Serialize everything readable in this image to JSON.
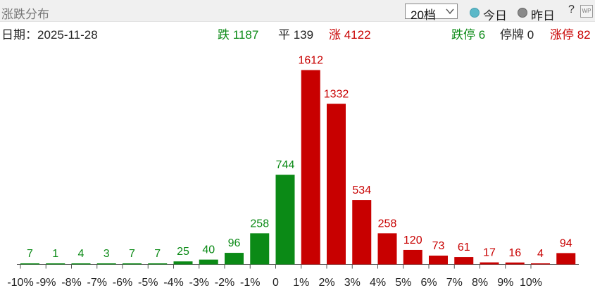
{
  "header": {
    "title": "涨跌分布",
    "tier_select": "20档",
    "radio_today": "今日",
    "radio_yesterday": "昨日",
    "help": "?",
    "logo_text": "WP"
  },
  "info": {
    "date": "日期：2025-11-28",
    "down": "跌 1187",
    "flat": "平 139",
    "up": "涨 4122",
    "limit_down": "跌停 6",
    "suspended": "停牌 0",
    "limit_up": "涨停 82"
  },
  "colors": {
    "up": "#c80000",
    "down": "#0b8a16",
    "axis": "#555555"
  },
  "chart_data": {
    "type": "bar",
    "categories": [
      "-10%",
      "-9%",
      "-8%",
      "-7%",
      "-6%",
      "-5%",
      "-4%",
      "-3%",
      "-2%",
      "-1%",
      "0",
      "1%",
      "2%",
      "3%",
      "4%",
      "5%",
      "6%",
      "7%",
      "8%",
      "9%",
      "10%"
    ],
    "bars": [
      {
        "value": 7,
        "label": "7",
        "dir": "down"
      },
      {
        "value": 1,
        "label": "1",
        "dir": "down"
      },
      {
        "value": 4,
        "label": "4",
        "dir": "down"
      },
      {
        "value": 3,
        "label": "3",
        "dir": "down"
      },
      {
        "value": 7,
        "label": "7",
        "dir": "down"
      },
      {
        "value": 7,
        "label": "7",
        "dir": "down"
      },
      {
        "value": 25,
        "label": "25",
        "dir": "down"
      },
      {
        "value": 40,
        "label": "40",
        "dir": "down"
      },
      {
        "value": 96,
        "label": "96",
        "dir": "down"
      },
      {
        "value": 258,
        "label": "258",
        "dir": "down"
      },
      {
        "value": 744,
        "label": "744",
        "dir": "down"
      },
      {
        "value": 1612,
        "label": "1612",
        "dir": "up"
      },
      {
        "value": 1332,
        "label": "1332",
        "dir": "up"
      },
      {
        "value": 534,
        "label": "534",
        "dir": "up"
      },
      {
        "value": 258,
        "label": "258",
        "dir": "up"
      },
      {
        "value": 120,
        "label": "120",
        "dir": "up"
      },
      {
        "value": 73,
        "label": "73",
        "dir": "up"
      },
      {
        "value": 61,
        "label": "61",
        "dir": "up"
      },
      {
        "value": 17,
        "label": "17",
        "dir": "up"
      },
      {
        "value": 16,
        "label": "16",
        "dir": "up"
      },
      {
        "value": 4,
        "label": "4",
        "dir": "up"
      },
      {
        "value": 94,
        "label": "94",
        "dir": "up"
      }
    ],
    "ylim": [
      0,
      1612
    ],
    "grid": false,
    "legend": "none"
  }
}
